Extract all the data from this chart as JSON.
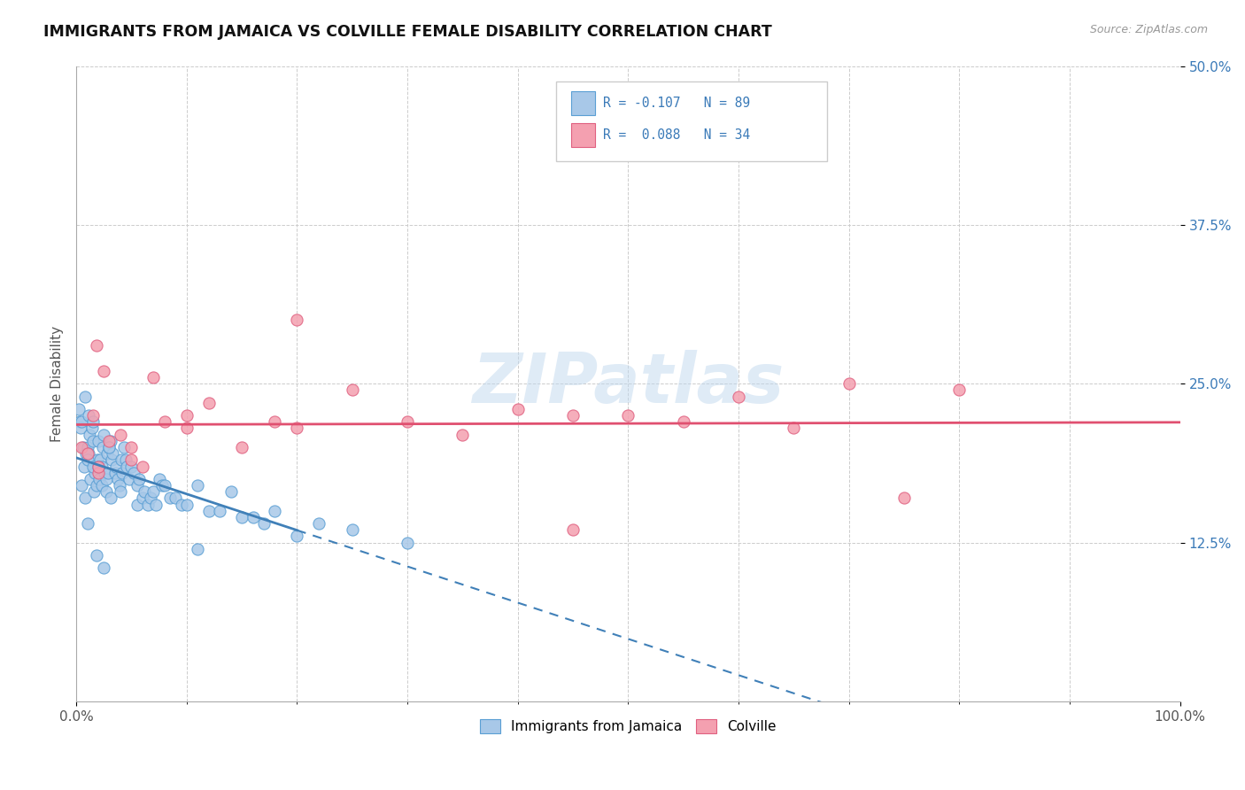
{
  "title": "IMMIGRANTS FROM JAMAICA VS COLVILLE FEMALE DISABILITY CORRELATION CHART",
  "source": "Source: ZipAtlas.com",
  "ylabel": "Female Disability",
  "xlim": [
    0,
    100
  ],
  "ylim": [
    0,
    50
  ],
  "xticklabels": [
    "0.0%",
    "100.0%"
  ],
  "yticks": [
    12.5,
    25.0,
    37.5,
    50.0
  ],
  "yticklabels": [
    "12.5%",
    "25.0%",
    "37.5%",
    "50.0%"
  ],
  "blue_color": "#a8c8e8",
  "blue_edge": "#5a9fd4",
  "pink_color": "#f4a0b0",
  "pink_edge": "#e06080",
  "line_blue": "#4080b8",
  "line_pink": "#e05070",
  "blue_scatter_x": [
    0.2,
    0.3,
    0.4,
    0.5,
    0.5,
    0.6,
    0.7,
    0.8,
    0.8,
    0.9,
    1.0,
    1.0,
    1.1,
    1.1,
    1.2,
    1.3,
    1.4,
    1.5,
    1.5,
    1.6,
    1.7,
    1.8,
    1.8,
    1.9,
    1.9,
    2.0,
    2.1,
    2.2,
    2.3,
    2.3,
    2.4,
    2.5,
    2.5,
    2.6,
    2.7,
    2.7,
    2.8,
    2.9,
    3.0,
    3.1,
    3.1,
    3.2,
    3.3,
    3.5,
    3.6,
    3.8,
    3.9,
    4.0,
    4.1,
    4.2,
    4.3,
    4.5,
    4.6,
    4.8,
    5.0,
    5.2,
    5.5,
    5.5,
    5.7,
    6.0,
    6.2,
    6.5,
    6.7,
    7.0,
    7.2,
    7.5,
    7.8,
    8.0,
    8.5,
    9.0,
    9.5,
    10.0,
    11.0,
    11.0,
    12.0,
    13.0,
    14.0,
    15.0,
    16.0,
    17.0,
    18.0,
    20.0,
    22.0,
    25.0,
    30.0,
    1.0,
    1.5,
    2.0,
    3.0
  ],
  "blue_scatter_y": [
    23.0,
    22.0,
    21.5,
    17.0,
    22.0,
    20.0,
    18.5,
    16.0,
    24.0,
    19.5,
    20.0,
    14.0,
    19.5,
    22.5,
    21.0,
    17.5,
    21.5,
    22.0,
    20.5,
    16.5,
    18.0,
    17.0,
    11.5,
    19.0,
    18.5,
    20.5,
    17.5,
    19.0,
    18.5,
    17.0,
    20.0,
    21.0,
    10.5,
    18.0,
    17.5,
    16.5,
    19.5,
    18.0,
    20.0,
    20.5,
    16.0,
    19.0,
    19.5,
    18.0,
    18.5,
    17.5,
    17.0,
    16.5,
    19.0,
    18.0,
    20.0,
    19.0,
    18.5,
    17.5,
    18.5,
    18.0,
    15.5,
    17.0,
    17.5,
    16.0,
    16.5,
    15.5,
    16.0,
    16.5,
    15.5,
    17.5,
    17.0,
    17.0,
    16.0,
    16.0,
    15.5,
    15.5,
    17.0,
    12.0,
    15.0,
    15.0,
    16.5,
    14.5,
    14.5,
    14.0,
    15.0,
    13.0,
    14.0,
    13.5,
    12.5,
    19.0,
    18.5,
    18.5,
    20.0
  ],
  "pink_scatter_x": [
    0.5,
    1.0,
    1.5,
    1.8,
    2.0,
    2.5,
    3.0,
    4.0,
    5.0,
    6.0,
    7.0,
    8.0,
    10.0,
    12.0,
    15.0,
    18.0,
    20.0,
    20.0,
    25.0,
    30.0,
    35.0,
    40.0,
    45.0,
    50.0,
    55.0,
    60.0,
    65.0,
    70.0,
    75.0,
    80.0,
    2.0,
    5.0,
    10.0,
    45.0
  ],
  "pink_scatter_y": [
    20.0,
    19.5,
    22.5,
    28.0,
    18.0,
    26.0,
    20.5,
    21.0,
    19.0,
    18.5,
    25.5,
    22.0,
    21.5,
    23.5,
    20.0,
    22.0,
    21.5,
    30.0,
    24.5,
    22.0,
    21.0,
    23.0,
    22.5,
    22.5,
    22.0,
    24.0,
    21.5,
    25.0,
    16.0,
    24.5,
    18.5,
    20.0,
    22.5,
    13.5
  ]
}
